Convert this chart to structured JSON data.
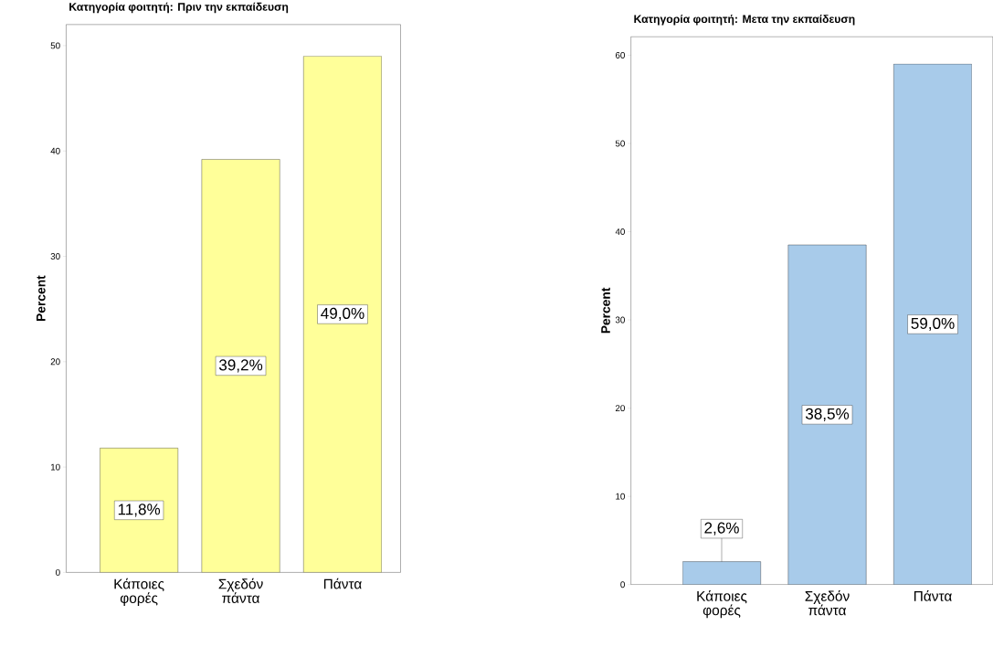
{
  "chart_data": [
    {
      "type": "bar",
      "title": "Κατηγορία φοιτητή: Πριν την εκπαίδευση",
      "ylabel": "Percent",
      "categories": [
        "Κάποιες φορές",
        "Σχεδόν πάντα",
        "Πάντα"
      ],
      "values": [
        11.8,
        39.2,
        49.0
      ],
      "value_labels": [
        "11,8%",
        "39,2%",
        "49,0%"
      ],
      "color": "#ffff99",
      "ylim": [
        0,
        52
      ],
      "yticks": [
        0,
        10,
        20,
        30,
        40,
        50
      ]
    },
    {
      "type": "bar",
      "title": "Κατηγορία φοιτητή: Μετα την εκπαίδευση",
      "ylabel": "Percent",
      "categories": [
        "Κάποιες φορές",
        "Σχεδόν πάντα",
        "Πάντα"
      ],
      "values": [
        2.6,
        38.5,
        59.0
      ],
      "value_labels": [
        "2,6%",
        "38,5%",
        "59,0%"
      ],
      "color": "#a8cbea",
      "ylim": [
        0,
        62.1
      ],
      "yticks": [
        0,
        10,
        20,
        30,
        40,
        50,
        60
      ]
    }
  ]
}
